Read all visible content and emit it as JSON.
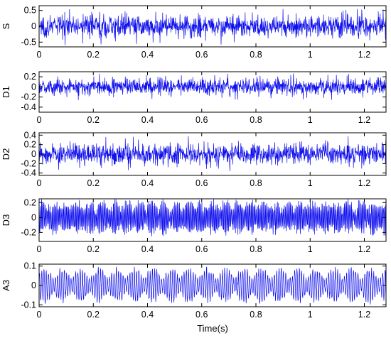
{
  "chart_data": [
    {
      "type": "line",
      "ylabel": "S",
      "xlim": [
        0,
        1.28
      ],
      "ylim": [
        -0.65,
        0.65
      ],
      "x_ticks": [
        0,
        0.2,
        0.4,
        0.6,
        0.8,
        1,
        1.2
      ],
      "x_tick_labels": [
        "0",
        "0.2",
        "0.4",
        "0.6",
        "0.8",
        "1",
        "1.2"
      ],
      "y_ticks": [
        -0.5,
        0,
        0.5
      ],
      "y_tick_labels": [
        "-0.5",
        "0",
        "0.5"
      ],
      "series": [
        {
          "amplitude": 0.6,
          "color": "#1010ee"
        }
      ]
    },
    {
      "type": "line",
      "ylabel": "D1",
      "xlim": [
        0,
        1.28
      ],
      "ylim": [
        -0.5,
        0.3
      ],
      "x_ticks": [
        0,
        0.2,
        0.4,
        0.6,
        0.8,
        1,
        1.2
      ],
      "x_tick_labels": [
        "0",
        "0.2",
        "0.4",
        "0.6",
        "0.8",
        "1",
        "1.2"
      ],
      "y_ticks": [
        -0.4,
        -0.2,
        0,
        0.2
      ],
      "y_tick_labels": [
        "-0.4",
        "-0.2",
        "0",
        "0.2"
      ],
      "series": [
        {
          "amplitude": 0.28,
          "color": "#1010ee"
        }
      ]
    },
    {
      "type": "line",
      "ylabel": "D2",
      "xlim": [
        0,
        1.28
      ],
      "ylim": [
        -0.45,
        0.45
      ],
      "x_ticks": [
        0,
        0.2,
        0.4,
        0.6,
        0.8,
        1,
        1.2
      ],
      "x_tick_labels": [
        "0",
        "0.2",
        "0.4",
        "0.6",
        "0.8",
        "1",
        "1.2"
      ],
      "y_ticks": [
        -0.4,
        -0.2,
        0,
        0.2,
        0.4
      ],
      "y_tick_labels": [
        "-0.4",
        "-0.2",
        "0",
        "0.2",
        "0.4"
      ],
      "series": [
        {
          "amplitude": 0.38,
          "color": "#1010ee"
        }
      ]
    },
    {
      "type": "line",
      "ylabel": "D3",
      "xlim": [
        0,
        1.28
      ],
      "ylim": [
        -0.32,
        0.25
      ],
      "x_ticks": [
        0,
        0.2,
        0.4,
        0.6,
        0.8,
        1,
        1.2
      ],
      "x_tick_labels": [
        "0",
        "0.2",
        "0.4",
        "0.6",
        "0.8",
        "1",
        "1.2"
      ],
      "y_ticks": [
        -0.2,
        0,
        0.2
      ],
      "y_tick_labels": [
        "-0.2",
        "0",
        "0.2"
      ],
      "series": [
        {
          "amplitude": 0.26,
          "color": "#1010ee"
        }
      ]
    },
    {
      "type": "line",
      "ylabel": "A3",
      "xlabel": "Time(s)",
      "xlim": [
        0,
        1.28
      ],
      "ylim": [
        -0.11,
        0.11
      ],
      "x_ticks": [
        0,
        0.2,
        0.4,
        0.6,
        0.8,
        1,
        1.2
      ],
      "x_tick_labels": [
        "0",
        "0.2",
        "0.4",
        "0.6",
        "0.8",
        "1",
        "1.2"
      ],
      "y_ticks": [
        -0.1,
        0,
        0.1
      ],
      "y_tick_labels": [
        "-0.1",
        "0",
        "0.1"
      ],
      "series": [
        {
          "amplitude": 0.1,
          "color": "#1010ee"
        }
      ]
    }
  ]
}
